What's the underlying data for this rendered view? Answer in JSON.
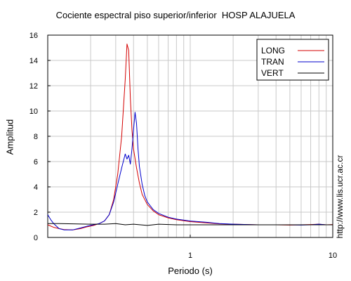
{
  "chart_data": {
    "type": "line",
    "title": "Cociente espectral piso superior/inferior  HOSP ALAJUELA",
    "xlabel": "Periodo (s)",
    "ylabel": "Amplitud",
    "xscale": "log",
    "xlim": [
      0.1,
      10
    ],
    "ylim": [
      0,
      16
    ],
    "x_ticks": [
      1,
      10
    ],
    "y_ticks": [
      0,
      2,
      4,
      6,
      8,
      10,
      12,
      14,
      16
    ],
    "grid": true,
    "legend_position": "top-right",
    "annotation": "http://www.lis.ucr.ac.cr",
    "series": [
      {
        "name": "LONG",
        "color": "#d40000",
        "x": [
          0.1,
          0.11,
          0.12,
          0.13,
          0.15,
          0.17,
          0.19,
          0.21,
          0.23,
          0.25,
          0.27,
          0.29,
          0.31,
          0.33,
          0.35,
          0.36,
          0.37,
          0.38,
          0.39,
          0.4,
          0.42,
          0.44,
          0.46,
          0.5,
          0.55,
          0.6,
          0.7,
          0.8,
          1.0,
          1.3,
          1.6,
          2.0,
          3.0,
          4.0,
          5.0,
          6.0,
          7.0,
          8.0,
          9.0,
          10.0
        ],
        "y": [
          1.0,
          0.8,
          0.7,
          0.62,
          0.6,
          0.7,
          0.85,
          0.95,
          1.1,
          1.3,
          1.8,
          3.0,
          5.0,
          8.0,
          12.5,
          15.3,
          14.8,
          11.0,
          8.5,
          7.0,
          5.5,
          4.3,
          3.4,
          2.6,
          2.1,
          1.8,
          1.55,
          1.4,
          1.25,
          1.15,
          1.08,
          1.05,
          1.0,
          1.0,
          0.98,
          1.0,
          1.02,
          1.05,
          1.0,
          1.02
        ]
      },
      {
        "name": "TRAN",
        "color": "#0000cc",
        "x": [
          0.1,
          0.105,
          0.11,
          0.12,
          0.13,
          0.15,
          0.17,
          0.19,
          0.21,
          0.23,
          0.25,
          0.27,
          0.29,
          0.31,
          0.33,
          0.35,
          0.36,
          0.37,
          0.38,
          0.39,
          0.4,
          0.41,
          0.42,
          0.43,
          0.44,
          0.46,
          0.48,
          0.5,
          0.55,
          0.6,
          0.7,
          0.8,
          1.0,
          1.3,
          1.6,
          2.0,
          3.0,
          4.0,
          5.0,
          6.0,
          7.0,
          8.0,
          9.0,
          10.0
        ],
        "y": [
          1.8,
          1.4,
          1.1,
          0.7,
          0.6,
          0.6,
          0.75,
          0.9,
          1.0,
          1.1,
          1.3,
          1.8,
          2.8,
          4.2,
          5.5,
          6.6,
          6.2,
          6.5,
          5.8,
          7.0,
          8.5,
          9.9,
          9.0,
          7.0,
          5.6,
          4.2,
          3.3,
          2.8,
          2.2,
          1.9,
          1.6,
          1.45,
          1.3,
          1.2,
          1.1,
          1.05,
          1.0,
          1.0,
          1.0,
          0.98,
          1.0,
          1.05,
          1.0,
          1.0
        ]
      },
      {
        "name": "VERT",
        "color": "#000000",
        "x": [
          0.1,
          0.12,
          0.15,
          0.2,
          0.25,
          0.3,
          0.35,
          0.4,
          0.5,
          0.6,
          0.8,
          1.0,
          1.5,
          2.0,
          3.0,
          5.0,
          7.0,
          10.0
        ],
        "y": [
          1.1,
          1.1,
          1.08,
          1.05,
          1.05,
          1.1,
          1.0,
          1.05,
          0.95,
          1.05,
          1.0,
          1.0,
          1.0,
          1.0,
          1.0,
          1.0,
          1.0,
          1.0
        ]
      }
    ]
  }
}
